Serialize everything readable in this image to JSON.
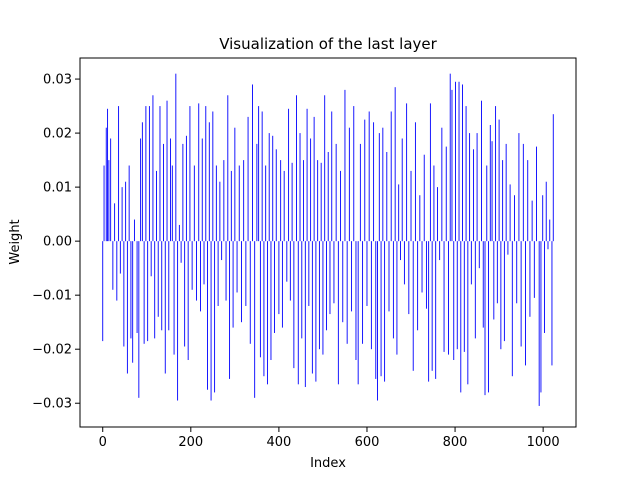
{
  "chart_data": {
    "type": "bar",
    "title": "Visualization of the last layer",
    "x_label": "Index",
    "y_label": "Weight",
    "color": "#0000ff",
    "x": [
      0,
      3,
      8,
      11,
      14,
      18,
      23,
      27,
      32,
      36,
      40,
      44,
      48,
      52,
      56,
      60,
      64,
      68,
      72,
      78,
      82,
      86,
      90,
      94,
      98,
      102,
      106,
      110,
      114,
      118,
      122,
      126,
      130,
      134,
      138,
      142,
      146,
      150,
      154,
      158,
      162,
      166,
      170,
      174,
      178,
      182,
      186,
      190,
      194,
      198,
      203,
      208,
      213,
      218,
      222,
      226,
      230,
      234,
      238,
      242,
      246,
      250,
      254,
      258,
      262,
      266,
      270,
      275,
      280,
      284,
      288,
      292,
      296,
      300,
      305,
      310,
      315,
      320,
      325,
      330,
      335,
      340,
      345,
      350,
      354,
      358,
      362,
      366,
      370,
      374,
      378,
      382,
      386,
      390,
      394,
      400,
      404,
      408,
      412,
      418,
      422,
      426,
      430,
      434,
      440,
      444,
      448,
      452,
      456,
      460,
      464,
      468,
      472,
      476,
      480,
      484,
      488,
      492,
      496,
      500,
      504,
      508,
      512,
      516,
      520,
      525,
      530,
      535,
      540,
      545,
      550,
      555,
      560,
      565,
      570,
      575,
      580,
      585,
      590,
      595,
      600,
      605,
      610,
      615,
      620,
      624,
      628,
      632,
      636,
      640,
      645,
      650,
      655,
      660,
      664,
      668,
      672,
      676,
      680,
      685,
      690,
      695,
      700,
      705,
      710,
      715,
      720,
      725,
      730,
      735,
      740,
      744,
      748,
      752,
      756,
      760,
      765,
      770,
      775,
      780,
      785,
      789,
      793,
      797,
      801,
      805,
      809,
      813,
      817,
      821,
      825,
      829,
      833,
      837,
      842,
      846,
      850,
      855,
      860,
      864,
      868,
      872,
      876,
      880,
      884,
      888,
      892,
      896,
      900,
      904,
      908,
      912,
      916,
      920,
      925,
      930,
      935,
      940,
      945,
      950,
      955,
      960,
      965,
      970,
      975,
      980,
      985,
      991,
      995,
      999,
      1003,
      1007,
      1011,
      1015,
      1020,
      1023
    ],
    "values": [
      -0.0185,
      0.014,
      0.021,
      0.0245,
      0.015,
      0.019,
      -0.009,
      0.007,
      -0.011,
      0.025,
      -0.006,
      0.01,
      -0.0195,
      0.011,
      -0.0245,
      0.014,
      -0.018,
      -0.0225,
      0.004,
      -0.017,
      -0.029,
      0.019,
      0.022,
      -0.019,
      0.025,
      -0.0185,
      0.025,
      -0.0065,
      0.027,
      -0.018,
      0.013,
      -0.014,
      0.025,
      -0.0165,
      0.018,
      -0.0245,
      0.026,
      -0.0165,
      0.019,
      0.014,
      -0.021,
      0.031,
      -0.0295,
      0.003,
      -0.004,
      0.018,
      -0.0195,
      0.0195,
      -0.022,
      0.025,
      -0.009,
      0.014,
      -0.011,
      0.0255,
      -0.013,
      0.019,
      -0.008,
      0.025,
      -0.0275,
      0.022,
      -0.0295,
      0.024,
      -0.028,
      0.014,
      -0.012,
      0.011,
      -0.0035,
      0.015,
      -0.011,
      0.027,
      -0.0255,
      0.013,
      -0.016,
      0.021,
      -0.0095,
      0.014,
      -0.015,
      0.015,
      -0.012,
      0.023,
      -0.019,
      0.029,
      -0.029,
      0.018,
      0.025,
      -0.0215,
      0.024,
      -0.025,
      0.014,
      -0.0265,
      0.02,
      -0.022,
      0.0195,
      -0.017,
      0.017,
      -0.0135,
      0.015,
      -0.016,
      0.013,
      -0.0075,
      0.0245,
      -0.011,
      0.0145,
      -0.0235,
      0.027,
      -0.0265,
      0.02,
      -0.018,
      0.015,
      -0.027,
      0.0245,
      -0.012,
      0.019,
      -0.0245,
      0.023,
      -0.026,
      0.015,
      -0.02,
      0.0145,
      -0.021,
      0.027,
      -0.0165,
      0.0165,
      -0.0135,
      0.024,
      -0.0115,
      0.018,
      -0.0265,
      0.013,
      -0.015,
      0.028,
      -0.019,
      0.021,
      -0.013,
      0.025,
      -0.022,
      -0.0265,
      0.018,
      -0.019,
      0.0225,
      -0.012,
      0.024,
      -0.02,
      0.022,
      -0.0255,
      -0.0295,
      0.02,
      -0.025,
      0.021,
      -0.026,
      0.0165,
      -0.013,
      0.024,
      -0.018,
      0.0285,
      -0.021,
      0.0105,
      -0.0035,
      0.019,
      -0.008,
      0.0255,
      -0.0135,
      0.013,
      -0.024,
      0.022,
      -0.0165,
      0.0085,
      -0.0095,
      0.016,
      -0.0125,
      -0.026,
      0.0255,
      -0.024,
      0.014,
      -0.0255,
      0.01,
      -0.0035,
      0.021,
      -0.0205,
      0.0175,
      -0.021,
      0.031,
      0.028,
      -0.022,
      0.0295,
      -0.02,
      0.0295,
      -0.028,
      0.029,
      -0.0205,
      0.025,
      -0.0265,
      0.02,
      -0.008,
      0.017,
      -0.018,
      0.02,
      -0.005,
      0.026,
      -0.016,
      -0.0285,
      0.014,
      -0.028,
      0.0215,
      0.0185,
      -0.0145,
      0.025,
      -0.0115,
      0.0225,
      -0.02,
      0.015,
      -0.0185,
      0.018,
      -0.0025,
      0.0105,
      -0.025,
      0.0085,
      -0.0115,
      0.02,
      -0.0195,
      0.018,
      -0.023,
      0.015,
      -0.014,
      0.0075,
      -0.0105,
      0.0175,
      -0.0305,
      -0.028,
      0.0085,
      -0.017,
      0.011,
      -0.0015,
      0.004,
      -0.023,
      0.0235
    ],
    "xlim": [
      -51.6,
      1074.6
    ],
    "xticks": [
      0,
      200,
      400,
      600,
      800,
      1000
    ],
    "ylim": [
      -0.0344,
      0.0339
    ],
    "yticks": [
      {
        "value": -0.03,
        "label": "−0.03"
      },
      {
        "value": -0.02,
        "label": "−0.02"
      },
      {
        "value": -0.01,
        "label": "−0.01"
      },
      {
        "value": 0,
        "label": "0.00"
      },
      0.01,
      0.02,
      0.03
    ]
  }
}
